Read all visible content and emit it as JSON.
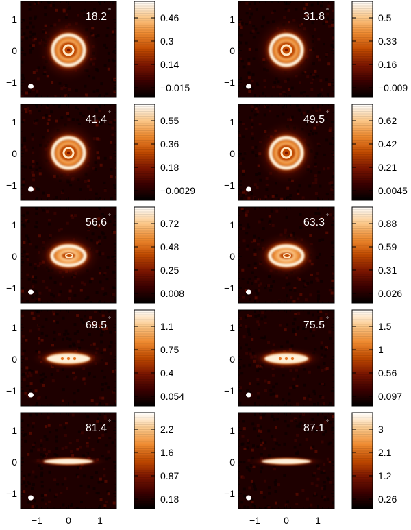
{
  "figure": {
    "panels": [
      {
        "label": "18.2",
        "ring": "circle",
        "cbar_ticks": [
          "0.46",
          "0.3",
          "0.14",
          "−0.015"
        ]
      },
      {
        "label": "31.8",
        "ring": "circle",
        "cbar_ticks": [
          "0.5",
          "0.33",
          "0.16",
          "−0.009"
        ]
      },
      {
        "label": "41.4",
        "ring": "circle",
        "cbar_ticks": [
          "0.55",
          "0.36",
          "0.18",
          "−0.0029"
        ]
      },
      {
        "label": "49.5",
        "ring": "circle",
        "cbar_ticks": [
          "0.62",
          "0.42",
          "0.21",
          "0.0045"
        ]
      },
      {
        "label": "56.6",
        "ring": "ellipse",
        "cbar_ticks": [
          "0.72",
          "0.48",
          "0.25",
          "0.008"
        ]
      },
      {
        "label": "63.3",
        "ring": "ellipse",
        "cbar_ticks": [
          "0.88",
          "0.59",
          "0.31",
          "0.026"
        ]
      },
      {
        "label": "69.5",
        "ring": "flat",
        "cbar_ticks": [
          "1.1",
          "0.75",
          "0.4",
          "0.054"
        ]
      },
      {
        "label": "75.5",
        "ring": "flat",
        "cbar_ticks": [
          "1.5",
          "1",
          "0.56",
          "0.097"
        ]
      },
      {
        "label": "81.4",
        "ring": "line",
        "cbar_ticks": [
          "2.2",
          "1.6",
          "0.87",
          "0.18"
        ]
      },
      {
        "label": "87.1",
        "ring": "line",
        "cbar_ticks": [
          "3",
          "2.1",
          "1.2",
          "0.26"
        ]
      }
    ],
    "degree_symbol": "°",
    "y_tick_labels": [
      "1",
      "0",
      "−1"
    ],
    "x_tick_labels": [
      "−1",
      "0",
      "1"
    ],
    "colormap": [
      "#000000",
      "#3a0000",
      "#7a1500",
      "#c04a00",
      "#ee8a30",
      "#fbc88a",
      "#ffffff"
    ]
  }
}
